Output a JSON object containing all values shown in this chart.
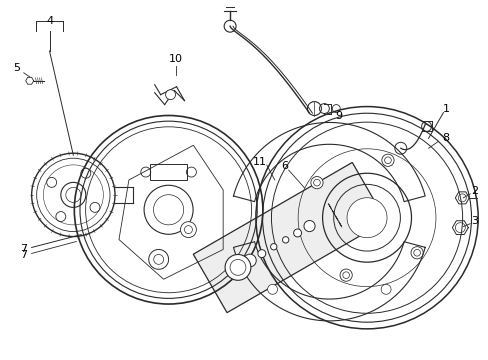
{
  "background_color": "#ffffff",
  "line_color": "#2a2a2a",
  "label_color": "#000000",
  "fig_w": 4.89,
  "fig_h": 3.6,
  "dpi": 100
}
